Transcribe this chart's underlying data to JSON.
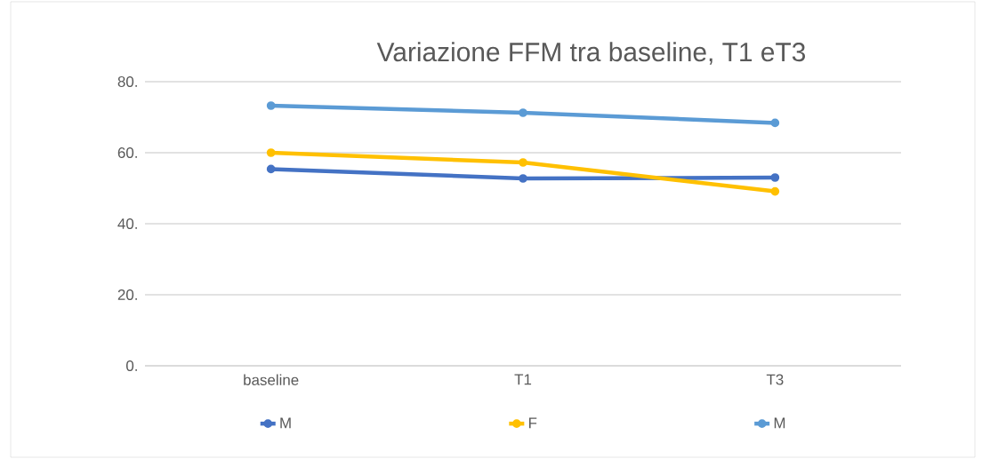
{
  "chart_data": {
    "type": "line",
    "title": "Variazione FFM tra baseline, T1 eT3",
    "categories": [
      "baseline",
      "T1",
      "T3"
    ],
    "series": [
      {
        "name": "M",
        "color": "#4472c4",
        "values": [
          55.4,
          52.75,
          53.0
        ]
      },
      {
        "name": "F",
        "color": "#ffc000",
        "values": [
          60.0,
          57.25,
          49.1
        ]
      },
      {
        "name": "M",
        "color": "#5b9bd5",
        "values": [
          73.25,
          71.25,
          68.4
        ]
      }
    ],
    "ylim": [
      0,
      80
    ],
    "yticks": [
      {
        "value": 0,
        "label": "0."
      },
      {
        "value": 20,
        "label": "20."
      },
      {
        "value": 40,
        "label": "40."
      },
      {
        "value": 60,
        "label": "60."
      },
      {
        "value": 80,
        "label": "80."
      }
    ],
    "grid": "y",
    "legend": "bottom",
    "marker": "circle"
  }
}
